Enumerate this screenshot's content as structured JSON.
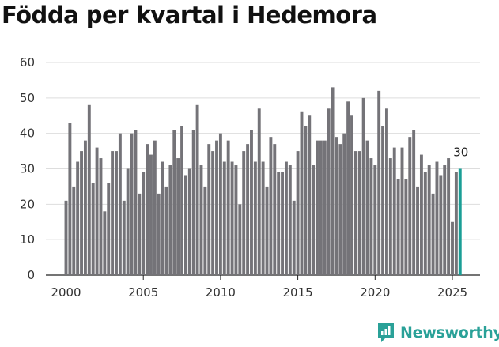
{
  "chart_data": {
    "type": "bar",
    "title": "Födda per kvartal i Hedemora",
    "xlabel": "",
    "ylabel": "",
    "ylim": [
      0,
      60
    ],
    "yticks": [
      0,
      10,
      20,
      30,
      40,
      50,
      60
    ],
    "x_start": 2000,
    "xticks": [
      2000,
      2005,
      2010,
      2015,
      2020,
      2025
    ],
    "grid": true,
    "bar_color": "#747378",
    "highlight_color": "#1a9e96",
    "last_value_label": "30",
    "values": [
      21,
      43,
      25,
      32,
      35,
      38,
      48,
      26,
      36,
      33,
      18,
      26,
      35,
      35,
      40,
      21,
      30,
      40,
      41,
      23,
      29,
      37,
      34,
      38,
      23,
      32,
      25,
      31,
      41,
      33,
      42,
      28,
      30,
      41,
      48,
      31,
      25,
      37,
      35,
      38,
      40,
      32,
      38,
      32,
      31,
      20,
      35,
      37,
      41,
      32,
      47,
      32,
      25,
      39,
      37,
      29,
      29,
      32,
      31,
      21,
      35,
      46,
      42,
      45,
      31,
      38,
      38,
      38,
      47,
      53,
      39,
      37,
      40,
      49,
      45,
      35,
      35,
      50,
      38,
      33,
      31,
      52,
      42,
      47,
      33,
      36,
      27,
      36,
      27,
      39,
      41,
      25,
      34,
      29,
      31,
      23,
      32,
      28,
      31,
      33,
      15,
      29,
      30
    ]
  },
  "brand": {
    "name": "Newsworthy",
    "color": "#2aa198"
  }
}
